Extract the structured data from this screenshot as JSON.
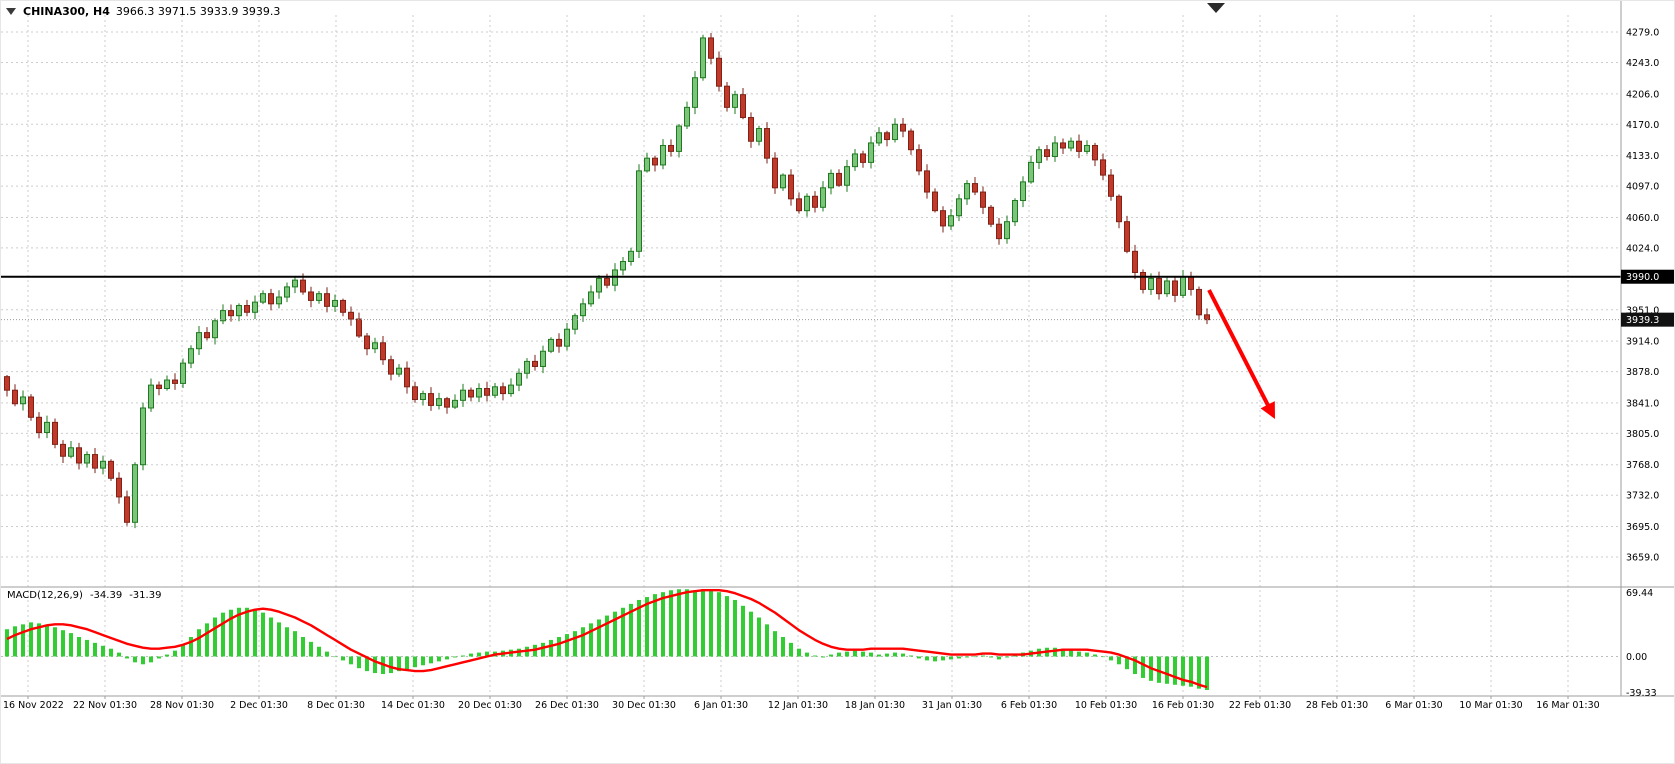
{
  "header": {
    "symbol_timeframe": "CHINA300, H4",
    "ohlc_values": "3966.3 3971.5 3933.9 3939.3"
  },
  "chart_data": [
    {
      "type": "candlestick",
      "title": "CHINA300 H4 price chart",
      "ylim": [
        3659,
        4284
      ],
      "y_ticks": {
        "values": [
          4279,
          4243,
          4206,
          4170,
          4133,
          4097,
          4060,
          4024,
          3951,
          3914,
          3878,
          3841,
          3805,
          3768,
          3732,
          3695,
          3659
        ],
        "labels": [
          "4279.0",
          "4243.0",
          "4206.0",
          "4170.0",
          "4133.0",
          "4097.0",
          "4060.0",
          "4024.0",
          "3951.0",
          "3914.0",
          "3878.0",
          "3841.0",
          "3805.0",
          "3768.0",
          "3732.0",
          "3695.0",
          "3659.0"
        ]
      },
      "time_labels": [
        "16 Nov 2022",
        "22 Nov 01:30",
        "28 Nov 01:30",
        "2 Dec 01:30",
        "8 Dec 01:30",
        "14 Dec 01:30",
        "20 Dec 01:30",
        "26 Dec 01:30",
        "30 Dec 01:30",
        "6 Jan 01:30",
        "12 Jan 01:30",
        "18 Jan 01:30",
        "31 Jan 01:30",
        "6 Feb 01:30",
        "10 Feb 01:30",
        "16 Feb 01:30",
        "22 Feb 01:30",
        "28 Feb 01:30",
        "6 Mar 01:30",
        "10 Mar 01:30",
        "16 Mar 01:30"
      ],
      "first_open": 3872,
      "closes": [
        3856,
        3840,
        3848,
        3824,
        3806,
        3818,
        3792,
        3778,
        3788,
        3770,
        3780,
        3764,
        3772,
        3752,
        3730,
        3700,
        3768,
        3835,
        3862,
        3858,
        3868,
        3864,
        3888,
        3905,
        3924,
        3918,
        3938,
        3950,
        3944,
        3956,
        3948,
        3960,
        3970,
        3958,
        3966,
        3978,
        3986,
        3972,
        3962,
        3970,
        3955,
        3962,
        3948,
        3940,
        3920,
        3905,
        3912,
        3892,
        3875,
        3882,
        3860,
        3845,
        3852,
        3838,
        3846,
        3836,
        3844,
        3856,
        3848,
        3858,
        3850,
        3860,
        3852,
        3862,
        3876,
        3890,
        3884,
        3902,
        3916,
        3908,
        3928,
        3944,
        3958,
        3972,
        3988,
        3980,
        3998,
        4008,
        4020,
        4115,
        4130,
        4122,
        4145,
        4138,
        4168,
        4190,
        4225,
        4272,
        4248,
        4215,
        4190,
        4205,
        4178,
        4150,
        4165,
        4130,
        4095,
        4110,
        4082,
        4068,
        4085,
        4072,
        4095,
        4112,
        4098,
        4120,
        4135,
        4125,
        4148,
        4160,
        4152,
        4170,
        4162,
        4140,
        4115,
        4090,
        4068,
        4050,
        4062,
        4082,
        4100,
        4090,
        4072,
        4052,
        4035,
        4055,
        4080,
        4102,
        4125,
        4140,
        4132,
        4148,
        4142,
        4150,
        4138,
        4145,
        4128,
        4110,
        4085,
        4055,
        4020,
        3995,
        3975,
        3988,
        3970,
        3985,
        3968,
        3990,
        3975,
        3945,
        3939.3
      ],
      "hline": {
        "value": 3990.0,
        "label": "3990.0",
        "color": "#000000"
      },
      "current_price": {
        "value": 3939.3,
        "label": "3939.3",
        "tag_color": "#111111"
      },
      "up_color": "#7CC47C",
      "up_stroke": "#1F7A1F",
      "down_color": "#C0392B",
      "down_stroke": "#7E2217"
    },
    {
      "type": "macd",
      "label": "MACD(12,26,9)",
      "macd_value": "-34.39",
      "signal_value": "-31.39",
      "ylim": [
        -39.33,
        69.44
      ],
      "y_ticks": {
        "values": [
          69.44,
          0,
          -39.33
        ],
        "labels": [
          "69.44",
          "0.00",
          "-39.33"
        ]
      },
      "histogram": [
        28,
        31,
        33,
        35,
        34,
        32,
        30,
        27,
        24,
        20,
        17,
        14,
        11,
        8,
        4,
        -2,
        -6,
        -8,
        -6,
        -2,
        2,
        6,
        12,
        20,
        28,
        34,
        40,
        45,
        48,
        50,
        50,
        48,
        45,
        40,
        35,
        30,
        26,
        20,
        15,
        10,
        5,
        0,
        -4,
        -8,
        -12,
        -15,
        -17,
        -18,
        -17,
        -15,
        -13,
        -11,
        -9,
        -7,
        -5,
        -3,
        -1,
        1,
        3,
        4,
        5,
        5,
        6,
        7,
        8,
        10,
        12,
        14,
        17,
        20,
        23,
        26,
        30,
        34,
        38,
        42,
        46,
        50,
        54,
        58,
        61,
        64,
        66,
        68,
        69,
        69,
        68,
        69,
        68,
        66,
        62,
        58,
        52,
        46,
        40,
        33,
        26,
        20,
        14,
        8,
        4,
        1,
        -1,
        2,
        4,
        5,
        6,
        5,
        4,
        2,
        3,
        4,
        3,
        1,
        -2,
        -4,
        -5,
        -4,
        -3,
        -2,
        -1,
        0,
        1,
        -1,
        -3,
        -1,
        2,
        4,
        6,
        8,
        9,
        9,
        8,
        7,
        5,
        4,
        2,
        0,
        -4,
        -8,
        -13,
        -18,
        -22,
        -25,
        -27,
        -28,
        -29,
        -30,
        -31,
        -33,
        -34.4
      ],
      "signal": [
        18,
        22,
        25,
        28,
        30,
        32,
        33,
        33,
        32,
        30,
        28,
        25,
        22,
        19,
        16,
        13,
        11,
        9,
        8,
        8,
        9,
        10,
        12,
        15,
        19,
        24,
        29,
        34,
        39,
        43,
        46,
        48,
        49,
        48,
        46,
        43,
        40,
        36,
        32,
        27,
        22,
        17,
        12,
        7,
        3,
        -1,
        -5,
        -8,
        -11,
        -13,
        -14,
        -15,
        -15,
        -14,
        -12,
        -10,
        -8,
        -6,
        -4,
        -2,
        0,
        2,
        3,
        4,
        5,
        6,
        7,
        9,
        11,
        13,
        16,
        19,
        22,
        26,
        30,
        34,
        38,
        42,
        46,
        50,
        54,
        57,
        60,
        62,
        64,
        66,
        67,
        68,
        68,
        68,
        67,
        65,
        62,
        59,
        55,
        50,
        45,
        39,
        33,
        27,
        22,
        17,
        13,
        10,
        8,
        7,
        7,
        7,
        8,
        8,
        8,
        8,
        8,
        7,
        6,
        5,
        4,
        3,
        2,
        2,
        2,
        2,
        3,
        3,
        2,
        2,
        2,
        2,
        3,
        4,
        5,
        6,
        7,
        7,
        7,
        7,
        6,
        5,
        4,
        2,
        -1,
        -4,
        -8,
        -12,
        -15,
        -18,
        -21,
        -24,
        -26,
        -29,
        -31.4
      ],
      "histogram_color": "#32CD32",
      "signal_color": "#FF0000"
    }
  ],
  "annotation": {
    "type": "arrow",
    "color": "#FF0000",
    "from": [
      1208,
      289
    ],
    "to": [
      1274,
      418
    ]
  },
  "shift_marker_color": "#2b2b2b"
}
